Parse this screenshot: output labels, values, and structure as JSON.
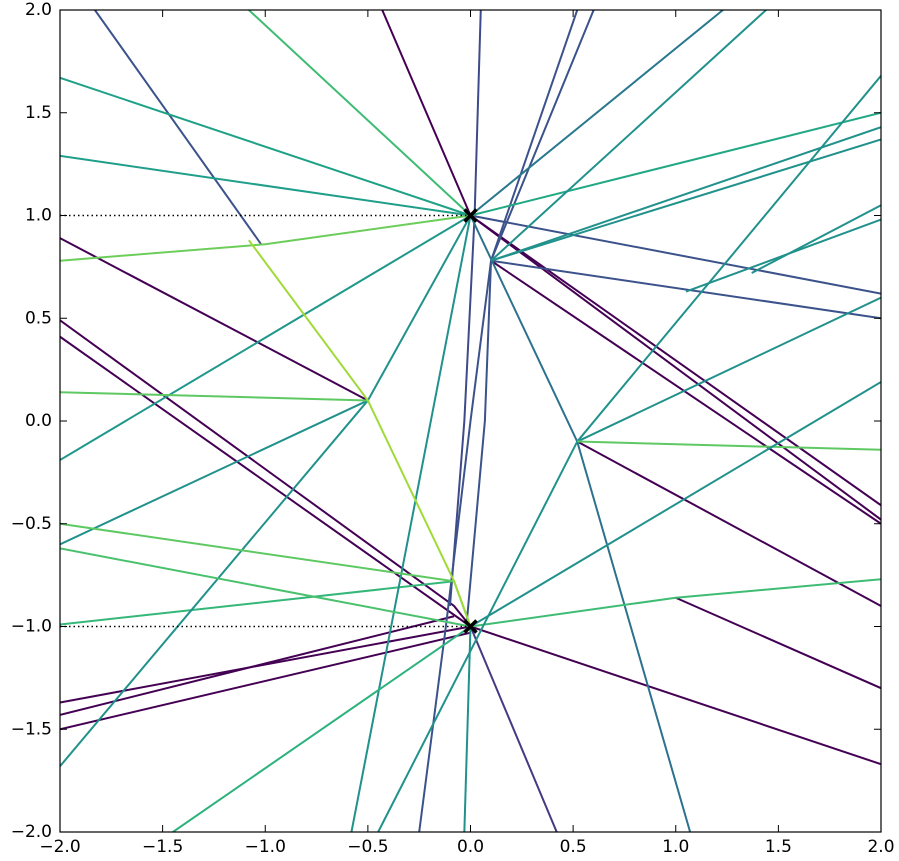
{
  "chart_data": {
    "type": "line",
    "xlim": [
      -2,
      2
    ],
    "ylim": [
      -2,
      2
    ],
    "xticks": [
      {
        "value": -2,
        "label": "−2.0"
      },
      {
        "value": -1.5,
        "label": "−1.5"
      },
      {
        "value": -1,
        "label": "−1.0"
      },
      {
        "value": -0.5,
        "label": "−0.5"
      },
      {
        "value": 0,
        "label": "0.0"
      },
      0.5,
      {
        "value": 1,
        "label": "1.0"
      },
      1.5,
      {
        "value": 2,
        "label": "2.0"
      }
    ],
    "yticks": [
      {
        "value": -2,
        "label": "−2.0"
      },
      {
        "value": -1.5,
        "label": "−1.5"
      },
      {
        "value": -1,
        "label": "−1.0"
      },
      {
        "value": -0.5,
        "label": "−0.5"
      },
      {
        "value": 0,
        "label": "0.0"
      },
      0.5,
      {
        "value": 1,
        "label": "1.0"
      },
      1.5,
      {
        "value": 2,
        "label": "2.0"
      }
    ],
    "series": [
      {
        "color": "#440154",
        "x": [
          -0.43,
          0,
          2
        ],
        "y": [
          2,
          1,
          -0.41
        ]
      },
      {
        "color": "#440154",
        "x": [
          0,
          2
        ],
        "y": [
          1,
          -0.48
        ]
      },
      {
        "color": "#3b528b",
        "x": [
          -1.83,
          -1.02
        ],
        "y": [
          2,
          0.86
        ]
      },
      {
        "color": "#440154",
        "x": [
          -2,
          -0.5
        ],
        "y": [
          0.89,
          0.1
        ]
      },
      {
        "color": "#440154",
        "x": [
          -2,
          -0.08,
          0
        ],
        "y": [
          0.49,
          -0.9,
          -1
        ]
      },
      {
        "color": "#440154",
        "x": [
          -2,
          0
        ],
        "y": [
          0.41,
          -1
        ]
      },
      {
        "color": "#440154",
        "x": [
          -2,
          0
        ],
        "y": [
          -1.37,
          -1
        ]
      },
      {
        "color": "#440154",
        "x": [
          -2,
          -0.08
        ],
        "y": [
          -1.43,
          -0.95
        ]
      },
      {
        "color": "#440154",
        "x": [
          -2,
          0
        ],
        "y": [
          -1.5,
          -1.03
        ]
      },
      {
        "color": "#440154",
        "x": [
          0,
          2
        ],
        "y": [
          -1,
          -1.67
        ]
      },
      {
        "color": "#440154",
        "x": [
          0.52,
          2
        ],
        "y": [
          -0.1,
          -0.9
        ]
      },
      {
        "color": "#440154",
        "x": [
          1,
          2
        ],
        "y": [
          -0.86,
          -1.3
        ]
      },
      {
        "color": "#440154",
        "x": [
          0.1,
          2
        ],
        "y": [
          0.78,
          -0.5
        ]
      },
      {
        "color": "#3b528b",
        "x": [
          0.1,
          2
        ],
        "y": [
          0.78,
          0.5
        ]
      },
      {
        "color": "#3b528b",
        "x": [
          0,
          2
        ],
        "y": [
          1,
          0.62
        ]
      },
      {
        "color": "#443a83",
        "x": [
          0,
          0.42
        ],
        "y": [
          -1,
          -2
        ]
      },
      {
        "color": "#3e4a89",
        "x": [
          0.05,
          0.02,
          -0.03,
          -0.1
        ],
        "y": [
          2,
          1,
          0,
          -0.9
        ]
      },
      {
        "color": "#3b528b",
        "x": [
          0.52,
          0.1,
          0.07,
          -0.02
        ],
        "y": [
          2,
          0.78,
          0,
          -1
        ]
      },
      {
        "color": "#3b528b",
        "x": [
          0.6,
          0.1,
          0,
          -0.12,
          -0.25
        ],
        "y": [
          2,
          0.78,
          0,
          -1,
          -2
        ]
      },
      {
        "color": "#1fa187",
        "x": [
          -2,
          0
        ],
        "y": [
          1.67,
          1
        ]
      },
      {
        "color": "#22a884",
        "x": [
          0,
          2
        ],
        "y": [
          1,
          1.5
        ]
      },
      {
        "color": "#1f9e89",
        "x": [
          -2,
          0
        ],
        "y": [
          1.29,
          1
        ]
      },
      {
        "color": "#21918c",
        "x": [
          0.1,
          2
        ],
        "y": [
          0.78,
          1.43
        ]
      },
      {
        "color": "#21918c",
        "x": [
          0.1,
          2
        ],
        "y": [
          0.78,
          1.37
        ]
      },
      {
        "color": "#1f988b",
        "x": [
          -2,
          0
        ],
        "y": [
          -0.19,
          1
        ]
      },
      {
        "color": "#21918c",
        "x": [
          -2,
          -0.5,
          0
        ],
        "y": [
          -0.6,
          0.1,
          1
        ]
      },
      {
        "color": "#35b779",
        "x": [
          -2,
          -0.08
        ],
        "y": [
          -0.99,
          -0.78
        ]
      },
      {
        "color": "#21918c",
        "x": [
          -2,
          -0.5
        ],
        "y": [
          -1.68,
          0.1
        ]
      },
      {
        "color": "#21918c",
        "x": [
          -0.58,
          0
        ],
        "y": [
          -2,
          1
        ]
      },
      {
        "color": "#2c728e",
        "x": [
          0,
          0.52,
          1.07
        ],
        "y": [
          1,
          -0.1,
          -2
        ]
      },
      {
        "color": "#2a788e",
        "x": [
          0,
          1.23
        ],
        "y": [
          1,
          2
        ]
      },
      {
        "color": "#21918c",
        "x": [
          0.1,
          1.44
        ],
        "y": [
          0.78,
          2
        ]
      },
      {
        "color": "#21918c",
        "x": [
          0.52,
          2
        ],
        "y": [
          -0.1,
          1.68
        ]
      },
      {
        "color": "#21918c",
        "x": [
          0.52,
          2
        ],
        "y": [
          -0.1,
          0.6
        ]
      },
      {
        "color": "#5ec962",
        "x": [
          0.52,
          2
        ],
        "y": [
          -0.1,
          -0.14
        ]
      },
      {
        "color": "#21918c",
        "x": [
          0,
          2
        ],
        "y": [
          -1,
          0.19
        ]
      },
      {
        "color": "#3fbc73",
        "x": [
          0,
          1,
          2
        ],
        "y": [
          -1,
          -0.86,
          -0.77
        ]
      },
      {
        "color": "#21918c",
        "x": [
          0.52,
          -0.45
        ],
        "y": [
          -0.1,
          -2
        ]
      },
      {
        "color": "#21918c",
        "x": [
          -0.03,
          0
        ],
        "y": [
          -2,
          -1
        ]
      },
      {
        "color": "#2db27d",
        "x": [
          -1.45,
          0
        ],
        "y": [
          -2,
          -1
        ]
      },
      {
        "color": "#5ec962",
        "x": [
          -2,
          -0.08,
          0
        ],
        "y": [
          -0.5,
          -0.78,
          -1
        ]
      },
      {
        "color": "#4ac16d",
        "x": [
          -2,
          0
        ],
        "y": [
          -0.62,
          -1
        ]
      },
      {
        "color": "#5ec962",
        "x": [
          -2,
          -0.5
        ],
        "y": [
          0.14,
          0.1
        ]
      },
      {
        "color": "#6ccd5a",
        "x": [
          -2,
          -1,
          0
        ],
        "y": [
          0.78,
          0.86,
          1
        ]
      },
      {
        "color": "#a0da39",
        "x": [
          -1.08,
          -0.5,
          -0.08,
          0
        ],
        "y": [
          0.88,
          0.1,
          -0.78,
          -1
        ]
      },
      {
        "color": "#3fbc73",
        "x": [
          -1.08,
          0
        ],
        "y": [
          2,
          1
        ]
      },
      {
        "color": "#21918c",
        "x": [
          1.37,
          2
        ],
        "y": [
          0.72,
          1.05
        ]
      },
      {
        "color": "#21918c",
        "x": [
          1.05,
          2
        ],
        "y": [
          0.63,
          0.98
        ]
      }
    ],
    "hlines": {
      "y": [
        1,
        -1
      ],
      "xmin": -2,
      "xmax": 0,
      "color": "#000000",
      "style": "dotted"
    },
    "markers": {
      "x": [
        0,
        0
      ],
      "y": [
        1,
        -1
      ],
      "color": "#000000",
      "symbol": "x"
    }
  }
}
